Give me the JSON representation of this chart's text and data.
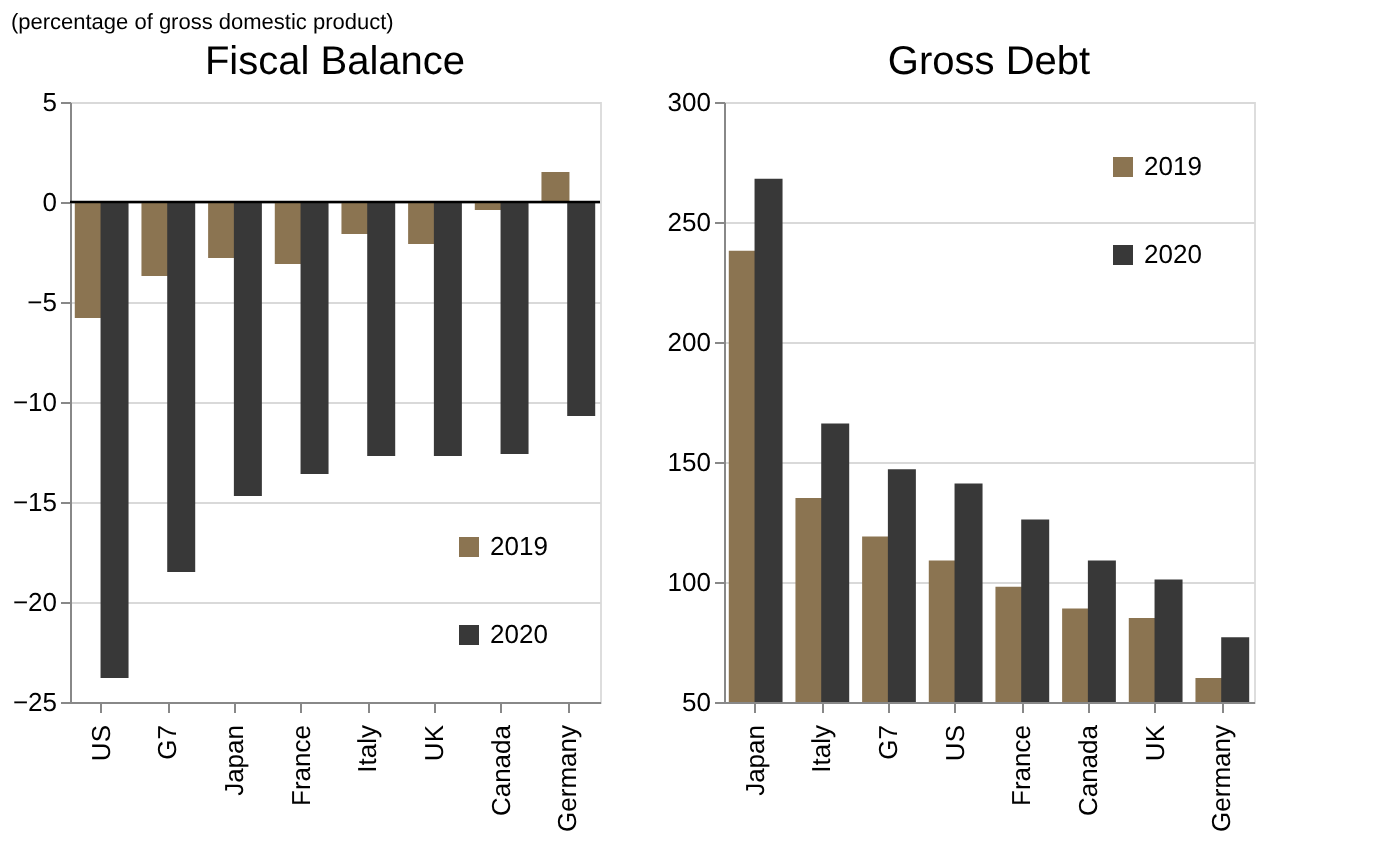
{
  "chart_data": [
    {
      "type": "bar",
      "title": "Fiscal Balance",
      "subtitle": "(percentage of gross domestic product)",
      "categories": [
        "US",
        "G7",
        "Japan",
        "France",
        "Italy",
        "UK",
        "Canada",
        "Germany"
      ],
      "series": [
        {
          "name": "2019",
          "color": "#8b7451",
          "values": [
            -5.8,
            -3.7,
            -2.8,
            -3.1,
            -1.6,
            -2.1,
            -0.4,
            1.5
          ]
        },
        {
          "name": "2020",
          "color": "#383838",
          "values": [
            -23.8,
            -18.5,
            -14.7,
            -13.6,
            -12.7,
            -12.7,
            -12.6,
            -10.7
          ]
        }
      ],
      "ylim": [
        -25,
        5
      ],
      "yticks": [
        -25,
        -20,
        -15,
        -10,
        -5,
        0,
        5
      ],
      "grid": "y",
      "legend": "bottom right",
      "ref_lines": [
        {
          "axis": "y",
          "value": 0,
          "color": "#000000"
        }
      ]
    },
    {
      "type": "bar",
      "title": "Gross Debt",
      "categories": [
        "Japan",
        "Italy",
        "G7",
        "US",
        "France",
        "Canada",
        "UK",
        "Germany"
      ],
      "series": [
        {
          "name": "2019",
          "color": "#8b7451",
          "values": [
            238,
            135,
            119,
            109,
            98,
            89,
            85,
            60
          ]
        },
        {
          "name": "2020",
          "color": "#383838",
          "values": [
            268,
            166,
            147,
            141,
            126,
            109,
            101,
            77
          ]
        }
      ],
      "ylim": [
        50,
        300
      ],
      "yticks": [
        50,
        100,
        150,
        200,
        250,
        300
      ],
      "grid": "y",
      "legend": "top right"
    }
  ]
}
